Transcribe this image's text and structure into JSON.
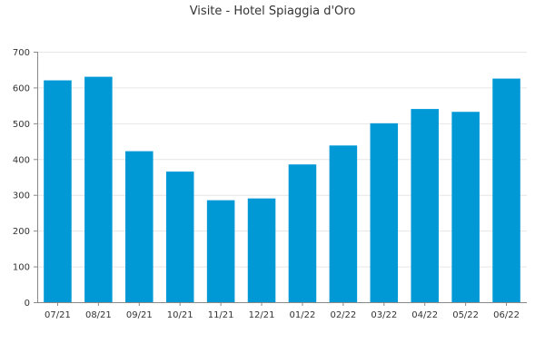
{
  "chart_data": {
    "type": "bar",
    "title": "Visite - Hotel Spiaggia d'Oro",
    "xlabel": "",
    "ylabel": "",
    "categories": [
      "07/21",
      "08/21",
      "09/21",
      "10/21",
      "11/21",
      "12/21",
      "01/22",
      "02/22",
      "03/22",
      "04/22",
      "05/22",
      "06/22"
    ],
    "values": [
      620,
      630,
      422,
      365,
      285,
      290,
      385,
      438,
      500,
      540,
      532,
      625
    ],
    "ylim": [
      0,
      700
    ],
    "yticks": [
      0,
      100,
      200,
      300,
      400,
      500,
      600,
      700
    ],
    "grid": true,
    "bar_color": "#0099d6"
  }
}
